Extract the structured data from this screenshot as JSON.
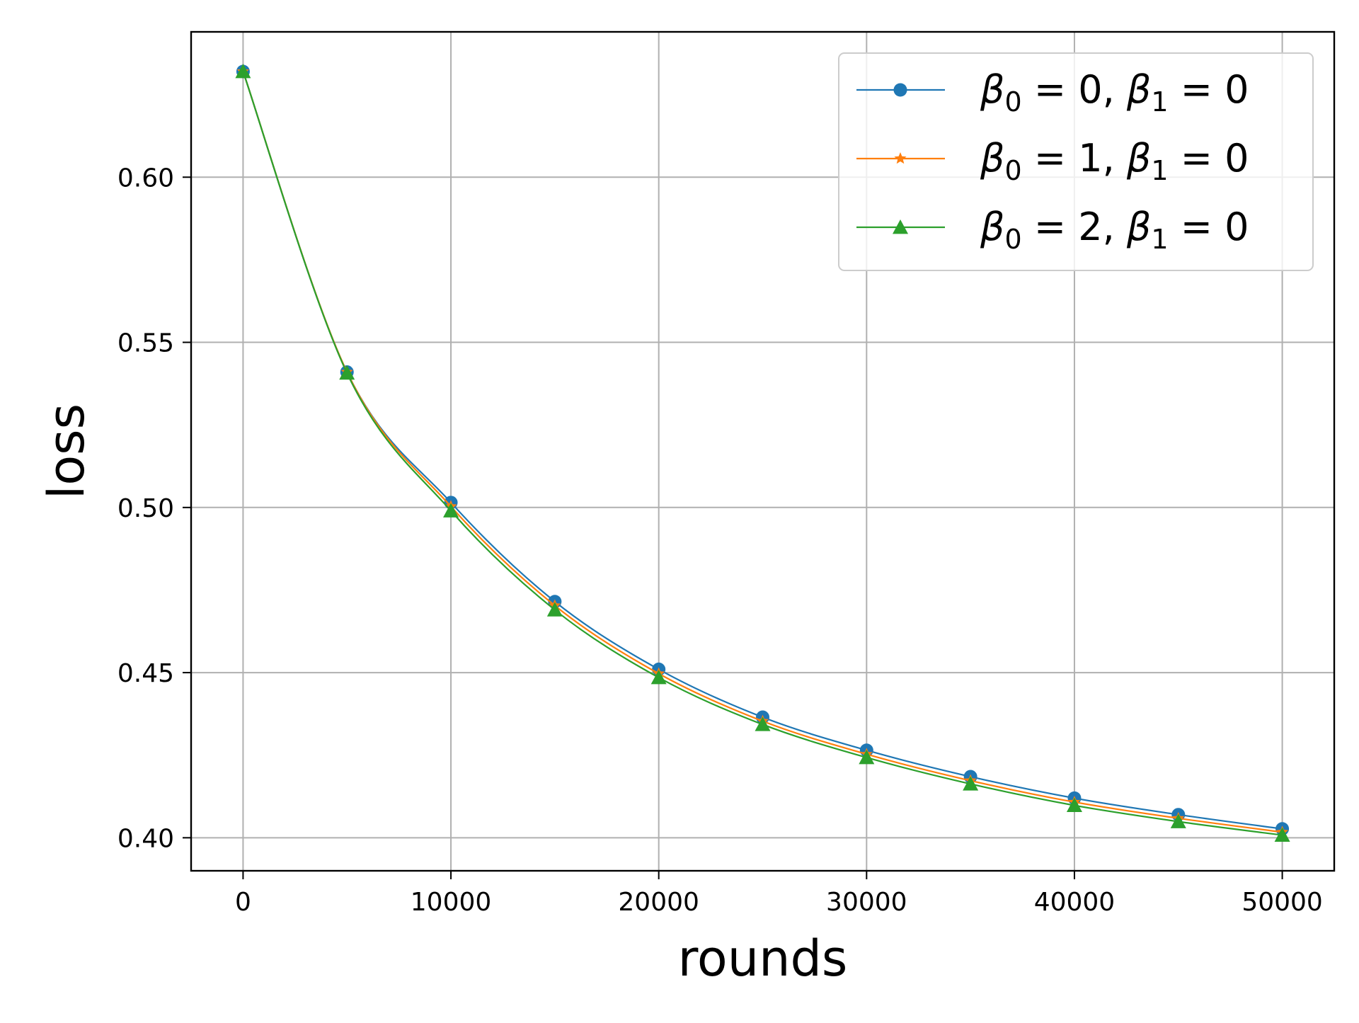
{
  "chart_data": {
    "type": "line",
    "title": "",
    "xlabel": "rounds",
    "ylabel": "loss",
    "xlim": [
      -2500,
      52500
    ],
    "ylim": [
      0.39,
      0.644
    ],
    "x_ticks": [
      0,
      10000,
      20000,
      30000,
      40000,
      50000
    ],
    "x_tick_labels": [
      "0",
      "10000",
      "20000",
      "30000",
      "40000",
      "50000"
    ],
    "y_ticks": [
      0.4,
      0.45,
      0.5,
      0.55,
      0.6
    ],
    "y_tick_labels": [
      "0.40",
      "0.45",
      "0.50",
      "0.55",
      "0.60"
    ],
    "grid": true,
    "legend_position": "top-right",
    "x": [
      0,
      5000,
      10000,
      15000,
      20000,
      25000,
      30000,
      35000,
      40000,
      45000,
      50000
    ],
    "series": [
      {
        "name": "β0 = 0, β1 = 0",
        "legend": {
          "b0": "0",
          "b1": "0"
        },
        "color": "#1f77b4",
        "marker": "circle",
        "values": [
          0.632,
          0.541,
          0.5015,
          0.4715,
          0.451,
          0.4365,
          0.4265,
          0.4185,
          0.412,
          0.407,
          0.4027
        ]
      },
      {
        "name": "β0 = 1, β1 = 0",
        "legend": {
          "b0": "1",
          "b1": "0"
        },
        "color": "#ff7f0e",
        "marker": "star",
        "values": [
          0.632,
          0.541,
          0.5003,
          0.4703,
          0.4497,
          0.4353,
          0.4253,
          0.4173,
          0.4108,
          0.4059,
          0.4017
        ]
      },
      {
        "name": "β0 = 2, β1 = 0",
        "legend": {
          "b0": "2",
          "b1": "0"
        },
        "color": "#2ca02c",
        "marker": "triangle",
        "values": [
          0.632,
          0.5407,
          0.499,
          0.469,
          0.4485,
          0.4343,
          0.4243,
          0.4163,
          0.4098,
          0.4049,
          0.4008
        ]
      }
    ]
  }
}
